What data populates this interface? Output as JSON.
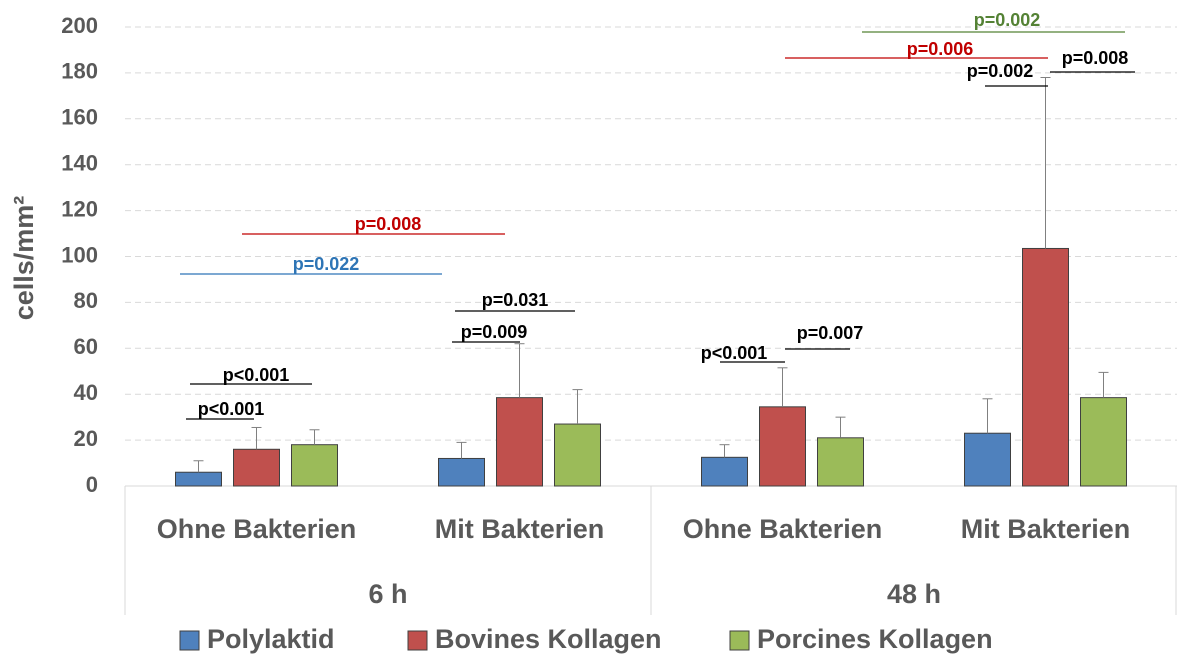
{
  "chart_data": {
    "type": "bar",
    "y_label": "cells/mm²",
    "categories": [
      "Ohne Bakterien",
      "Mit Bakterien",
      "Ohne Bakterien",
      "Mit Bakterien"
    ],
    "groups": [
      "6 h",
      "48 h"
    ],
    "series": [
      {
        "name": "Polylaktid",
        "color": "#4f81bd",
        "values": [
          6,
          12,
          12.5,
          23
        ],
        "errors": [
          5,
          7,
          5.5,
          15
        ]
      },
      {
        "name": "Bovines Kollagen",
        "color": "#c0504d",
        "values": [
          16,
          38.5,
          34.5,
          103.5
        ],
        "errors": [
          9.5,
          23.5,
          17,
          74.5
        ]
      },
      {
        "name": "Porcines Kollagen",
        "color": "#9bbb59",
        "values": [
          18,
          27,
          21,
          38.5
        ],
        "errors": [
          6.5,
          15,
          9,
          11
        ]
      }
    ],
    "ylim": [
      0,
      200
    ],
    "yticks": [
      0,
      20,
      40,
      60,
      80,
      100,
      120,
      140,
      160,
      180,
      200
    ],
    "grid": true,
    "annotations": [
      {
        "text": "p<0.001",
        "color": "#000000"
      },
      {
        "text": "p<0.001",
        "color": "#000000"
      },
      {
        "text": "p=0.022",
        "color": "#2e75b6"
      },
      {
        "text": "p=0.008",
        "color": "#c00000"
      },
      {
        "text": "p=0.031",
        "color": "#000000"
      },
      {
        "text": "p=0.009",
        "color": "#000000"
      },
      {
        "text": "p<0.001",
        "color": "#000000"
      },
      {
        "text": "p=0.007",
        "color": "#000000"
      },
      {
        "text": "p=0.006",
        "color": "#c00000"
      },
      {
        "text": "p=0.002",
        "color": "#548235"
      },
      {
        "text": "p=0.002",
        "color": "#000000"
      },
      {
        "text": "p=0.008",
        "color": "#000000"
      }
    ]
  }
}
